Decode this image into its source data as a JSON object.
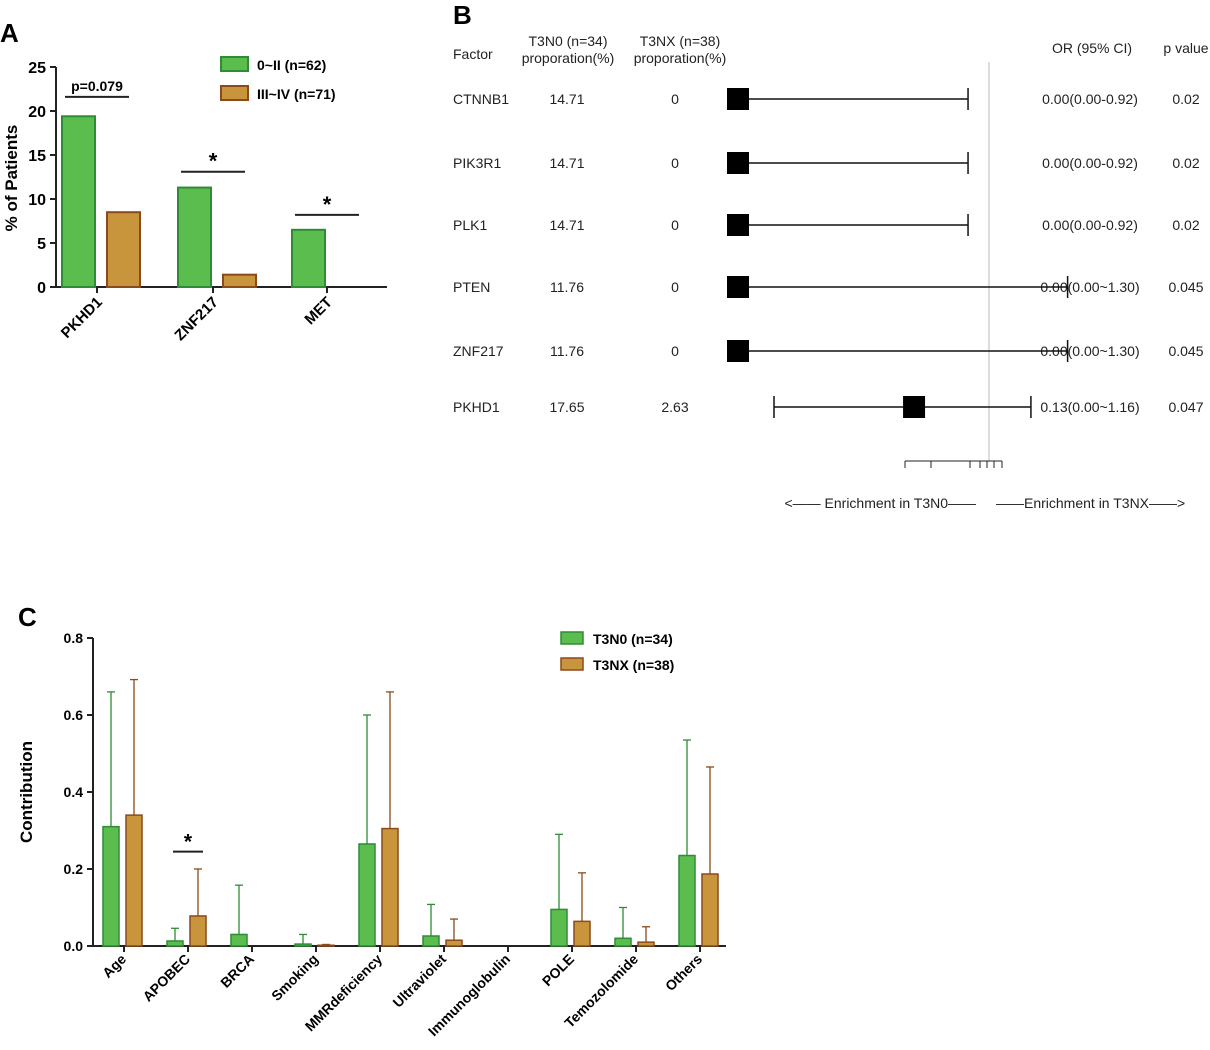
{
  "colors": {
    "green": "#5cbd4f",
    "green_edge": "#2e8b36",
    "orange": "#c9953c",
    "orange_edge": "#8a4a1c"
  },
  "panel_labels": [
    "A",
    "B",
    "C"
  ],
  "chart_data": [
    {
      "panel": "A",
      "type": "bar",
      "ylabel": "% of Patients",
      "ylim": [
        0,
        25
      ],
      "yticks": [
        0,
        5,
        10,
        15,
        20,
        25
      ],
      "categories": [
        "PKHD1",
        "ZNF217",
        "MET"
      ],
      "series": [
        {
          "name": "0~II (n=62)",
          "values": [
            19.4,
            11.3,
            6.5
          ],
          "color_key": "green"
        },
        {
          "name": "III~IV (n=71)",
          "values": [
            8.5,
            1.4,
            0.0
          ],
          "color_key": "orange"
        }
      ],
      "annotations": [
        {
          "category": "PKHD1",
          "text": "p=0.079",
          "y": 21.6
        },
        {
          "category": "ZNF217",
          "text": "*",
          "y": 13.1
        },
        {
          "category": "MET",
          "text": "*",
          "y": 8.2
        }
      ],
      "legend_position": "top-right"
    },
    {
      "panel": "B",
      "type": "forest",
      "headers": {
        "factor": "Factor",
        "t3n0": [
          "T3N0 (n=34)",
          "proporation(%)"
        ],
        "t3nx": [
          "T3NX (n=38)",
          "proporation(%)"
        ],
        "or": "OR (95% CI)",
        "p": "p value"
      },
      "rows": [
        {
          "factor": "CTNNB1",
          "t3n0": "14.71",
          "t3nx": "0",
          "or_text": "0.00(0.00-0.92)",
          "p": "0.02",
          "or": 0.0,
          "lo": 0.0,
          "hi": 0.92
        },
        {
          "factor": "PIK3R1",
          "t3n0": "14.71",
          "t3nx": "0",
          "or_text": "0.00(0.00-0.92)",
          "p": "0.02",
          "or": 0.0,
          "lo": 0.0,
          "hi": 0.92
        },
        {
          "factor": "PLK1",
          "t3n0": "14.71",
          "t3nx": "0",
          "or_text": "0.00(0.00-0.92)",
          "p": "0.02",
          "or": 0.0,
          "lo": 0.0,
          "hi": 0.92
        },
        {
          "factor": "PTEN",
          "t3n0": "11.76",
          "t3nx": "0",
          "or_text": "0.00(0.00~1.30)",
          "p": "0.045",
          "or": 0.0,
          "lo": 0.0,
          "hi": 1.3
        },
        {
          "factor": "ZNF217",
          "t3n0": "11.76",
          "t3nx": "0",
          "or_text": "0.00(0.00~1.30)",
          "p": "0.045",
          "or": 0.0,
          "lo": 0.0,
          "hi": 1.3
        },
        {
          "factor": "PKHD1",
          "t3n0": "17.65",
          "t3nx": "2.63",
          "or_text": "0.13(0.00~1.16)",
          "p": "0.047",
          "or": 0.13,
          "lo": 0.005,
          "hi": 1.16
        }
      ],
      "reference_line": 1,
      "footer_left": "<—— Enrichment in T3N0——",
      "footer_right": "——Enrichment in T3NX——>"
    },
    {
      "panel": "C",
      "type": "bar",
      "ylabel": "Contribution",
      "ylim": [
        0,
        0.8
      ],
      "yticks": [
        "0.0",
        "0.2",
        "0.4",
        "0.6",
        "0.8"
      ],
      "categories": [
        "Age",
        "APOBEC",
        "BRCA",
        "Smoking",
        "MMRdeficiency",
        "Ultraviolet",
        "Immunoglobulin",
        "POLE",
        "Temozolomide",
        "Others"
      ],
      "series": [
        {
          "name": "T3N0 (n=34)",
          "values": [
            0.31,
            0.013,
            0.03,
            0.005,
            0.265,
            0.026,
            0.0,
            0.095,
            0.02,
            0.235
          ],
          "err_upper": [
            0.66,
            0.046,
            0.158,
            0.03,
            0.6,
            0.108,
            0.0,
            0.29,
            0.1,
            0.535
          ],
          "color_key": "green"
        },
        {
          "name": "T3NX (n=38)",
          "values": [
            0.34,
            0.078,
            0.0,
            0.002,
            0.305,
            0.015,
            0.0,
            0.064,
            0.01,
            0.187
          ],
          "err_upper": [
            0.692,
            0.2,
            0.0,
            0.004,
            0.66,
            0.07,
            0.0,
            0.19,
            0.05,
            0.465
          ],
          "color_key": "orange"
        }
      ],
      "annotations": [
        {
          "category": "APOBEC",
          "text": "*",
          "y": 0.245
        }
      ],
      "legend_position": "top-right"
    }
  ]
}
